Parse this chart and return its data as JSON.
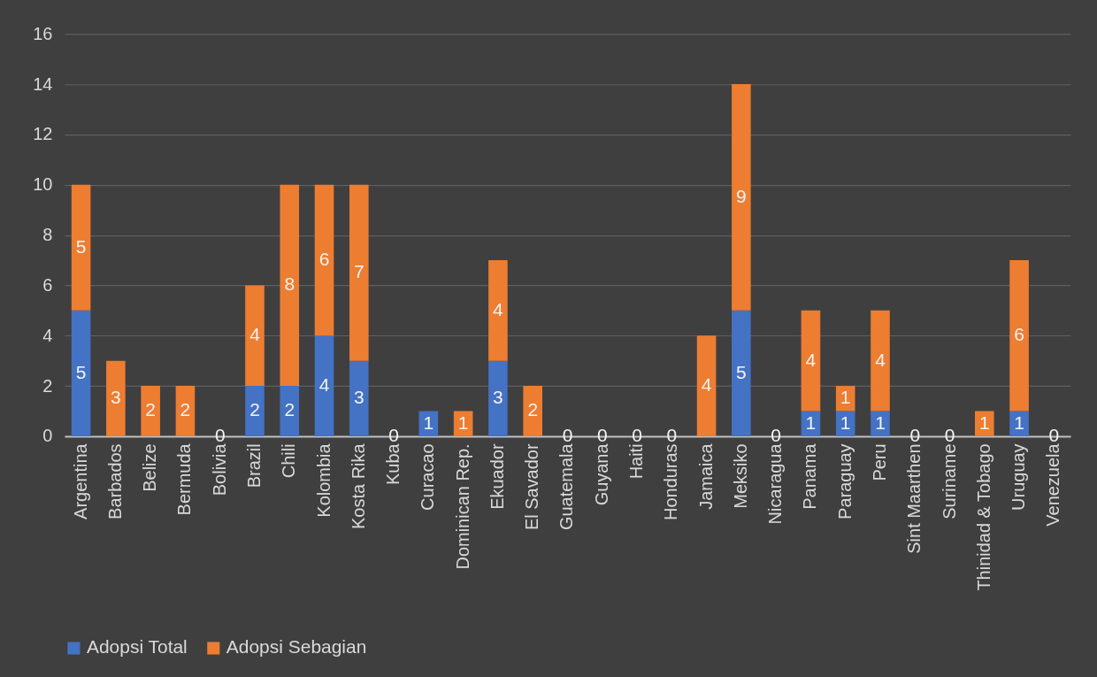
{
  "chart_data": {
    "type": "bar",
    "stacked": true,
    "data_labels": true,
    "grid": "y",
    "legend": "bottom",
    "categories": [
      "Argentina",
      "Barbados",
      "Belize",
      "Bermuda",
      "Bolivia",
      "Brazil",
      "Chili",
      "Kolombia",
      "Kosta Rika",
      "Kuba",
      "Curacao",
      "Dominican Rep.",
      "Ekuador",
      "El Savador",
      "Guatemala",
      "Guyana",
      "Haiti",
      "Honduras",
      "Jamaica",
      "Meksiko",
      "Nicaragua",
      "Panama",
      "Paraguay",
      "Peru",
      "Sint Maarthen",
      "Suriname",
      "Thinidad & Tobago",
      "Uruguay",
      "Venezuela"
    ],
    "series": [
      {
        "name": "Adopsi Total",
        "color": "#4472c4",
        "values": [
          5,
          null,
          null,
          null,
          0,
          2,
          2,
          4,
          3,
          0,
          1,
          null,
          3,
          null,
          0,
          0,
          0,
          0,
          null,
          5,
          0,
          1,
          1,
          1,
          0,
          0,
          null,
          1,
          0
        ]
      },
      {
        "name": "Adopsi Sebagian",
        "color": "#ed7d31",
        "values": [
          5,
          3,
          2,
          2,
          null,
          4,
          8,
          6,
          7,
          null,
          null,
          1,
          4,
          2,
          null,
          null,
          null,
          null,
          4,
          9,
          null,
          4,
          1,
          4,
          null,
          null,
          1,
          6,
          null
        ]
      }
    ],
    "ylim": [
      0,
      16
    ],
    "yticks": [
      0,
      2,
      4,
      6,
      8,
      10,
      12,
      14,
      16
    ]
  }
}
